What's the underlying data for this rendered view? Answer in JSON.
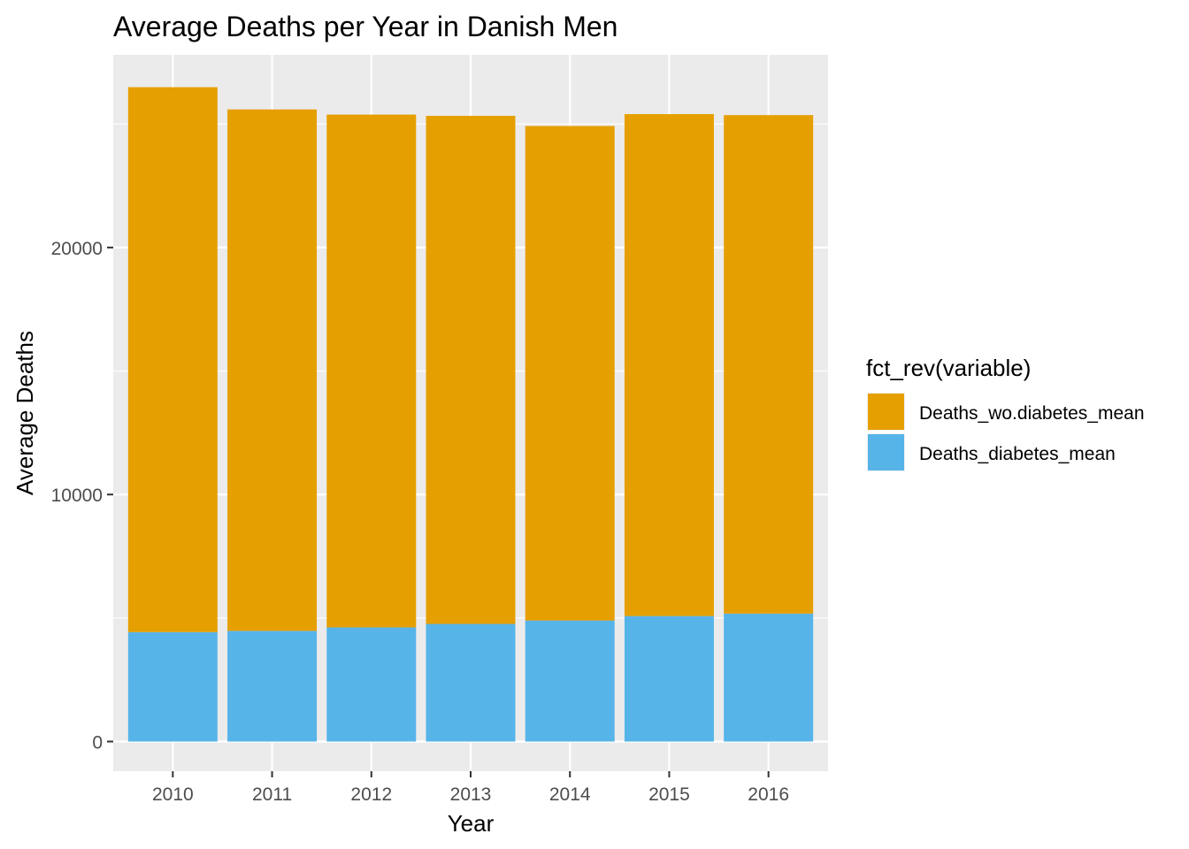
{
  "chart_data": {
    "type": "bar",
    "stacked": true,
    "title": "Average Deaths per Year in Danish Men",
    "xlabel": "Year",
    "ylabel": "Average Deaths",
    "categories": [
      "2010",
      "2011",
      "2012",
      "2013",
      "2014",
      "2015",
      "2016"
    ],
    "series": [
      {
        "name": "Deaths_diabetes_mean",
        "color": "#56B4E9",
        "values": [
          4430,
          4480,
          4620,
          4760,
          4900,
          5080,
          5180
        ]
      },
      {
        "name": "Deaths_wo.diabetes_mean",
        "color": "#E69F00",
        "values": [
          22060,
          21110,
          20760,
          20570,
          20020,
          20320,
          20180
        ]
      }
    ],
    "yticks": [
      0,
      10000,
      20000
    ],
    "ytick_labels": [
      "0",
      "10000",
      "20000"
    ],
    "ylim": [
      -1200,
      27800
    ],
    "grid": true,
    "panel_background": "#EBEBEB",
    "legend": {
      "title": "fct_rev(variable)",
      "placement": "right",
      "entries": [
        {
          "label": "Deaths_wo.diabetes_mean",
          "color": "#E69F00"
        },
        {
          "label": "Deaths_diabetes_mean",
          "color": "#56B4E9"
        }
      ]
    }
  }
}
